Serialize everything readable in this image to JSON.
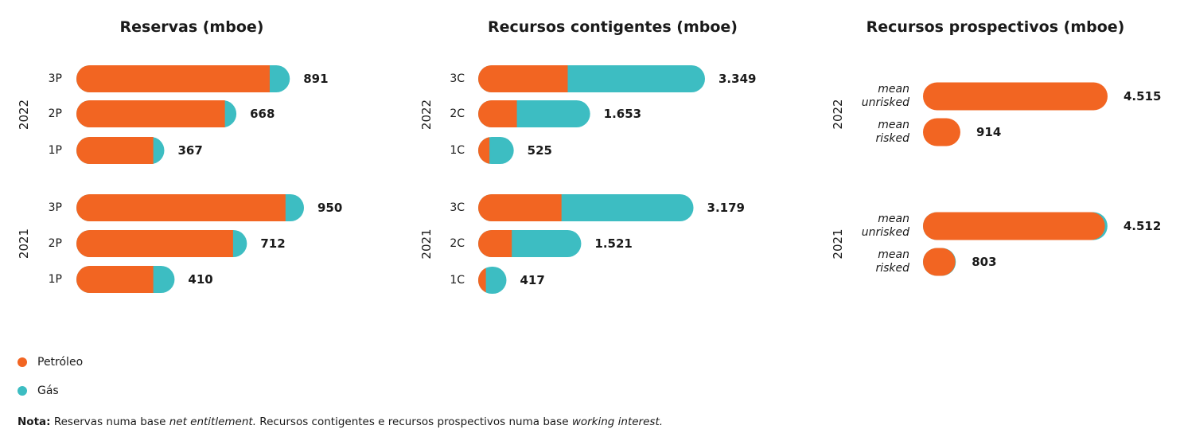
{
  "colors": {
    "oil": "#f26522",
    "gas": "#3dbdc2"
  },
  "legend": [
    {
      "label": "Petróleo",
      "color": "#f26522"
    },
    {
      "label": "Gás",
      "color": "#3dbdc2"
    }
  ],
  "note": {
    "label": "Nota:",
    "t1": " Reservas numa base ",
    "i1": "net entitlement.",
    "t2": " Recursos contigentes e recursos prospectivos numa base ",
    "i2": "working interest."
  },
  "chart_data": [
    {
      "type": "bar",
      "orientation": "horizontal",
      "stacked": true,
      "title": "Reservas (mboe)",
      "groups": [
        {
          "year": "2022",
          "categories": [
            "3P",
            "2P",
            "1P"
          ],
          "oil": [
            807,
            620,
            321
          ],
          "gas": [
            84,
            48,
            46
          ],
          "totals": [
            "891",
            "668",
            "367"
          ]
        },
        {
          "year": "2021",
          "categories": [
            "3P",
            "2P",
            "1P"
          ],
          "oil": [
            873,
            654,
            321
          ],
          "gas": [
            77,
            58,
            89
          ],
          "totals": [
            "950",
            "712",
            "410"
          ]
        }
      ]
    },
    {
      "type": "bar",
      "orientation": "horizontal",
      "stacked": true,
      "title": "Recursos contigentes (mboe)",
      "groups": [
        {
          "year": "2022",
          "categories": [
            "3C",
            "2C",
            "1C"
          ],
          "oil": [
            1322,
            571,
            166
          ],
          "gas": [
            2027,
            1082,
            359
          ],
          "totals": [
            "3.349",
            "1.653",
            "525"
          ]
        },
        {
          "year": "2021",
          "categories": [
            "3C",
            "2C",
            "1C"
          ],
          "oil": [
            1230,
            496,
            113
          ],
          "gas": [
            1949,
            1025,
            304
          ],
          "totals": [
            "3.179",
            "1.521",
            "417"
          ]
        }
      ]
    },
    {
      "type": "bar",
      "orientation": "horizontal",
      "stacked": true,
      "title": "Recursos prospectivos (mboe)",
      "groups": [
        {
          "year": "2022",
          "categories": [
            [
              "mean",
              "unrisked"
            ],
            [
              "mean",
              "risked"
            ]
          ],
          "oil": [
            4515,
            914
          ],
          "gas": [
            0,
            0
          ],
          "totals": [
            "4.515",
            "914"
          ]
        },
        {
          "year": "2021",
          "categories": [
            [
              "mean",
              "unrisked"
            ],
            [
              "mean",
              "risked"
            ]
          ],
          "oil": [
            4450,
            790
          ],
          "gas": [
            62,
            13
          ],
          "totals": [
            "4.512",
            "803"
          ]
        }
      ]
    }
  ]
}
